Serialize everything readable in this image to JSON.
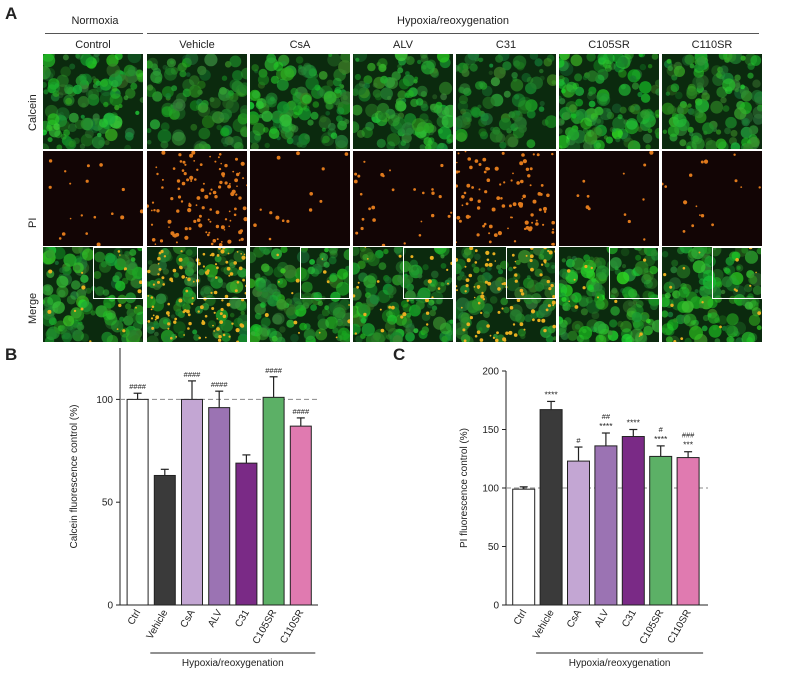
{
  "panels": {
    "a": "A",
    "b": "B",
    "c": "C"
  },
  "group_headers": {
    "normoxia": "Normoxia",
    "hr": "Hypoxia/reoxygenation"
  },
  "columns": [
    "Control",
    "Vehicle",
    "CsA",
    "ALV",
    "C31",
    "C105SR",
    "C110SR"
  ],
  "rows": [
    "Calcein",
    "PI",
    "Merge"
  ],
  "colors": {
    "calcein_green": "#2fa83a",
    "pi_orange": "#e07a1c",
    "bars": [
      "#ffffff",
      "#3a3a3a",
      "#c3a6d3",
      "#9b73b3",
      "#7a2a86",
      "#5cb066",
      "#e07ab0"
    ]
  },
  "chart_data": [
    {
      "type": "bar",
      "categories": [
        "Ctrl",
        "Vehicle",
        "CsA",
        "ALV",
        "C31",
        "C105SR",
        "C110SR"
      ],
      "values": [
        100,
        63,
        100,
        96,
        69,
        101,
        87
      ],
      "errors": [
        3,
        3,
        9,
        8,
        4,
        10,
        4
      ],
      "annotations_top": [
        "####",
        "",
        "####",
        "####",
        "",
        "####",
        "####"
      ],
      "annotations_mid": [
        "",
        "",
        "",
        "",
        "",
        "",
        ""
      ],
      "ylabel": "Calcein fluorescence control (%)",
      "yticks": [
        0,
        50,
        100
      ],
      "ylim": [
        0,
        125
      ],
      "reference_line": 100,
      "group_label": "Hypoxia/reoxygenation"
    },
    {
      "type": "bar",
      "categories": [
        "Ctrl",
        "Vehicle",
        "CsA",
        "ALV",
        "C31",
        "C105SR",
        "C110SR"
      ],
      "values": [
        99,
        167,
        123,
        136,
        144,
        127,
        126
      ],
      "errors": [
        2,
        7,
        12,
        11,
        6,
        9,
        5
      ],
      "annotations_top": [
        "",
        "****",
        "#",
        "##",
        "****",
        "#",
        "###"
      ],
      "annotations_mid": [
        "",
        "",
        "",
        "****",
        "",
        "****",
        "***"
      ],
      "ylabel": "PI fluorescence control (%)",
      "yticks": [
        0,
        50,
        100,
        150,
        200
      ],
      "ylim": [
        0,
        200
      ],
      "reference_line": 100,
      "group_label": "Hypoxia/reoxygenation"
    }
  ]
}
